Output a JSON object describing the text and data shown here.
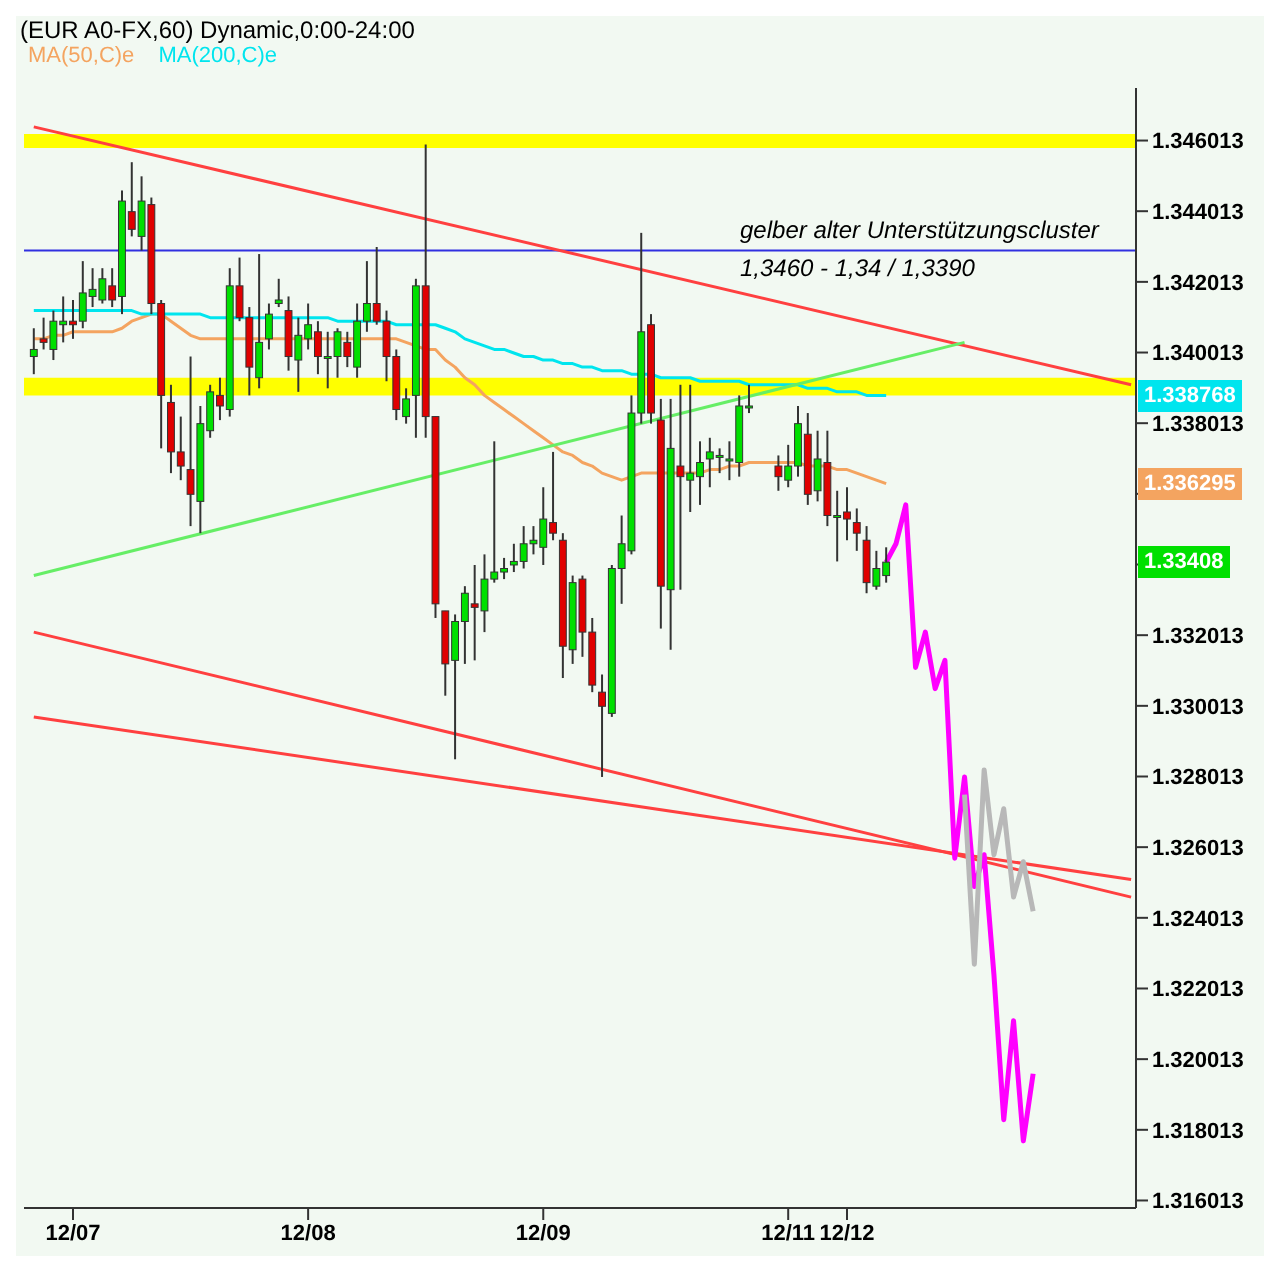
{
  "chart_data": {
    "type": "candlestick",
    "title": "(EUR A0-FX,60) Dynamic,0:00-24:00",
    "categories": [
      null,
      null,
      null,
      null,
      "12/07",
      null,
      null,
      null,
      null,
      null,
      null,
      null,
      null,
      null,
      null,
      null,
      null,
      null,
      null,
      null,
      null,
      null,
      null,
      null,
      null,
      null,
      null,
      null,
      "12/08",
      null,
      null,
      null,
      null,
      null,
      null,
      null,
      null,
      null,
      null,
      null,
      null,
      null,
      null,
      null,
      null,
      null,
      null,
      null,
      null,
      null,
      null,
      null,
      "12/09",
      null,
      null,
      null,
      null,
      null,
      null,
      null,
      null,
      null,
      null,
      null,
      null,
      null,
      null,
      null,
      null,
      null,
      null,
      null,
      null,
      null,
      null,
      null,
      null,
      "12/11",
      null,
      null,
      null,
      null,
      null,
      "12/12",
      null,
      null,
      null,
      null,
      null,
      null,
      null,
      null,
      null,
      null,
      null,
      null,
      null,
      null,
      null,
      null,
      null,
      null,
      null,
      null,
      null,
      null,
      null,
      null,
      null,
      null,
      null,
      null,
      null
    ],
    "ohlc": [
      [
        1.3399,
        1.3407,
        1.3394,
        1.3401
      ],
      [
        1.3404,
        1.341,
        1.3401,
        1.3403
      ],
      [
        1.3401,
        1.3412,
        1.3398,
        1.3409
      ],
      [
        1.3408,
        1.3416,
        1.3403,
        1.3409
      ],
      [
        1.3409,
        1.3415,
        1.3404,
        1.3408
      ],
      [
        1.3409,
        1.3426,
        1.3407,
        1.3417
      ],
      [
        1.3416,
        1.3424,
        1.3413,
        1.3418
      ],
      [
        1.3415,
        1.3424,
        1.3414,
        1.3421
      ],
      [
        1.3419,
        1.3424,
        1.3413,
        1.3415
      ],
      [
        1.3416,
        1.3446,
        1.3411,
        1.3443
      ],
      [
        1.344,
        1.3454,
        1.3433,
        1.3435
      ],
      [
        1.3433,
        1.345,
        1.3429,
        1.3443
      ],
      [
        1.3442,
        1.3444,
        1.3411,
        1.3414
      ],
      [
        1.3414,
        1.3415,
        1.3373,
        1.3388
      ],
      [
        1.3386,
        1.3391,
        1.3366,
        1.3372
      ],
      [
        1.3372,
        1.3382,
        1.3364,
        1.3368
      ],
      [
        1.3367,
        1.3399,
        1.3351,
        1.336
      ],
      [
        1.3358,
        1.3385,
        1.3349,
        1.338
      ],
      [
        1.3378,
        1.3391,
        1.3376,
        1.3389
      ],
      [
        1.3388,
        1.3393,
        1.3381,
        1.3385
      ],
      [
        1.3384,
        1.3424,
        1.3382,
        1.3419
      ],
      [
        1.3419,
        1.3427,
        1.3409,
        1.341
      ],
      [
        1.341,
        1.3413,
        1.3388,
        1.3396
      ],
      [
        1.3393,
        1.3428,
        1.339,
        1.3403
      ],
      [
        1.3404,
        1.3414,
        1.3401,
        1.3411
      ],
      [
        1.3414,
        1.3421,
        1.3413,
        1.3415
      ],
      [
        1.3412,
        1.3416,
        1.3395,
        1.3399
      ],
      [
        1.3398,
        1.341,
        1.3389,
        1.3405
      ],
      [
        1.3404,
        1.3414,
        1.3401,
        1.3408
      ],
      [
        1.3406,
        1.3409,
        1.3394,
        1.3399
      ],
      [
        1.3399,
        1.3406,
        1.339,
        1.3399
      ],
      [
        1.3399,
        1.3407,
        1.3393,
        1.3406
      ],
      [
        1.3403,
        1.3406,
        1.3396,
        1.3399
      ],
      [
        1.3396,
        1.3414,
        1.3393,
        1.3409
      ],
      [
        1.3409,
        1.3426,
        1.3406,
        1.3414
      ],
      [
        1.3414,
        1.343,
        1.3408,
        1.3409
      ],
      [
        1.3409,
        1.3412,
        1.3392,
        1.3399
      ],
      [
        1.3399,
        1.3401,
        1.3381,
        1.3384
      ],
      [
        1.3382,
        1.339,
        1.338,
        1.3387
      ],
      [
        1.3388,
        1.3421,
        1.3376,
        1.3419
      ],
      [
        1.3419,
        1.3459,
        1.3376,
        1.3382
      ],
      [
        1.3382,
        1.3382,
        1.3325,
        1.3329
      ],
      [
        1.3327,
        1.3327,
        1.3303,
        1.3312
      ],
      [
        1.3313,
        1.3326,
        1.3285,
        1.3324
      ],
      [
        1.3324,
        1.3334,
        1.3312,
        1.3332
      ],
      [
        1.3329,
        1.334,
        1.3313,
        1.3328
      ],
      [
        1.3327,
        1.3343,
        1.3321,
        1.3336
      ],
      [
        1.3336,
        1.3375,
        1.3335,
        1.3338
      ],
      [
        1.3338,
        1.3342,
        1.3336,
        1.3339
      ],
      [
        1.334,
        1.3346,
        1.3338,
        1.3341
      ],
      [
        1.3341,
        1.3351,
        1.3339,
        1.3346
      ],
      [
        1.3346,
        1.3351,
        1.3343,
        1.3347
      ],
      [
        1.3345,
        1.3362,
        1.334,
        1.3353
      ],
      [
        1.3352,
        1.3372,
        1.3347,
        1.3349
      ],
      [
        1.3347,
        1.3349,
        1.3308,
        1.3317
      ],
      [
        1.3316,
        1.3337,
        1.3312,
        1.3335
      ],
      [
        1.3336,
        1.3337,
        1.3314,
        1.3321
      ],
      [
        1.3321,
        1.3325,
        1.3304,
        1.3306
      ],
      [
        1.3304,
        1.3309,
        1.328,
        1.33
      ],
      [
        1.3298,
        1.334,
        1.3297,
        1.3339
      ],
      [
        1.3339,
        1.3354,
        1.3329,
        1.3346
      ],
      [
        1.3344,
        1.3388,
        1.3343,
        1.3383
      ],
      [
        1.3383,
        1.3434,
        1.338,
        1.3406
      ],
      [
        1.3408,
        1.3411,
        1.338,
        1.3383
      ],
      [
        1.3381,
        1.3387,
        1.3322,
        1.3334
      ],
      [
        1.3333,
        1.3387,
        1.3316,
        1.3373
      ],
      [
        1.3368,
        1.3391,
        1.3333,
        1.3365
      ],
      [
        1.3364,
        1.3391,
        1.3355,
        1.3366
      ],
      [
        1.3365,
        1.3375,
        1.3357,
        1.3369
      ],
      [
        1.337,
        1.3376,
        1.3362,
        1.3372
      ],
      [
        1.3371,
        1.3373,
        1.3366,
        1.3371
      ],
      [
        1.337,
        1.3375,
        1.3364,
        1.337
      ],
      [
        1.3369,
        1.3388,
        1.3365,
        1.3385
      ],
      [
        1.3385,
        1.3391,
        1.3383,
        1.3385
      ],
      null,
      null,
      [
        1.3368,
        1.3371,
        1.3361,
        1.3365
      ],
      [
        1.3364,
        1.3374,
        1.3362,
        1.3368
      ],
      [
        1.3368,
        1.3385,
        1.3365,
        1.338
      ],
      [
        1.3377,
        1.3383,
        1.3357,
        1.336
      ],
      [
        1.3361,
        1.3378,
        1.3358,
        1.337
      ],
      [
        1.3369,
        1.3378,
        1.3351,
        1.3354
      ],
      [
        1.3354,
        1.3361,
        1.3341,
        1.3354
      ],
      [
        1.3355,
        1.3362,
        1.3347,
        1.3353
      ],
      [
        1.3352,
        1.3356,
        1.3344,
        1.3349
      ],
      [
        1.3347,
        1.3351,
        1.3332,
        1.3335
      ],
      [
        1.3334,
        1.3344,
        1.3333,
        1.3339
      ],
      [
        1.3337,
        1.3345,
        1.3335,
        1.33408
      ],
      null,
      null,
      null,
      null,
      null,
      null,
      null,
      null,
      null,
      null,
      null,
      null,
      null,
      null,
      null,
      null,
      null,
      null,
      null,
      null,
      null,
      null,
      null,
      null,
      null
    ],
    "series": [
      {
        "type": "line",
        "name": "MA(50,C)e",
        "color": "#f4a460",
        "values": [
          1.3404,
          1.3404,
          1.3405,
          1.3405,
          1.3406,
          1.3406,
          1.3406,
          1.3406,
          1.3406,
          1.3407,
          1.3409,
          1.341,
          1.3411,
          1.3411,
          1.3409,
          1.3407,
          1.3405,
          1.3404,
          1.3404,
          1.3404,
          1.3404,
          1.3404,
          1.3404,
          1.3404,
          1.3404,
          1.3404,
          1.3404,
          1.3404,
          1.3404,
          1.3404,
          1.3404,
          1.3404,
          1.3404,
          1.3404,
          1.3404,
          1.3404,
          1.3404,
          1.3404,
          1.3403,
          1.3402,
          1.3401,
          1.3401,
          1.3398,
          1.3396,
          1.3393,
          1.3391,
          1.3388,
          1.3386,
          1.3384,
          1.3382,
          1.338,
          1.3378,
          1.3376,
          1.3374,
          1.3372,
          1.3371,
          1.3369,
          1.3368,
          1.3366,
          1.3365,
          1.3364,
          1.3365,
          1.3366,
          1.3366,
          1.3366,
          1.3366,
          1.3366,
          1.3366,
          1.3366,
          1.3367,
          1.3367,
          1.3368,
          1.3368,
          1.3369,
          1.3369,
          1.3369,
          1.3369,
          1.3369,
          1.3369,
          1.3368,
          1.3368,
          1.3368,
          1.3367,
          1.3367,
          1.3366,
          1.3365,
          1.3364,
          1.3363,
          null,
          null,
          null,
          null,
          null,
          null,
          null,
          null,
          null,
          null,
          null,
          null,
          null,
          null,
          null,
          null,
          null,
          null,
          null,
          null,
          null,
          null,
          null,
          null,
          null
        ]
      },
      {
        "type": "line",
        "name": "MA(200,C)e",
        "color": "#00e5ee",
        "values": [
          1.3412,
          1.3412,
          1.3412,
          1.3412,
          1.3412,
          1.3412,
          1.3412,
          1.3412,
          1.3412,
          1.3412,
          1.3412,
          1.3411,
          1.3411,
          1.3411,
          1.3411,
          1.3411,
          1.3411,
          1.3411,
          1.341,
          1.341,
          1.341,
          1.341,
          1.341,
          1.341,
          1.341,
          1.341,
          1.341,
          1.341,
          1.341,
          1.341,
          1.341,
          1.3409,
          1.3409,
          1.3409,
          1.3409,
          1.3409,
          1.3409,
          1.3408,
          1.3408,
          1.3408,
          1.3408,
          1.3408,
          1.3407,
          1.3406,
          1.3404,
          1.3403,
          1.3402,
          1.3401,
          1.3401,
          1.34,
          1.3399,
          1.3399,
          1.3398,
          1.3398,
          1.3397,
          1.3397,
          1.3396,
          1.3396,
          1.3395,
          1.3395,
          1.3395,
          1.3394,
          1.3394,
          1.3394,
          1.3393,
          1.3393,
          1.3393,
          1.3393,
          1.3392,
          1.3392,
          1.3392,
          1.3392,
          1.3392,
          1.3391,
          1.3391,
          1.3391,
          1.3391,
          1.3391,
          1.3391,
          1.339,
          1.339,
          1.339,
          1.3389,
          1.3389,
          1.3389,
          1.3388,
          1.3388,
          1.3388,
          null,
          null,
          null,
          null,
          null,
          null,
          null,
          null,
          null,
          null,
          null,
          null,
          null,
          null,
          null,
          null,
          null,
          null,
          null,
          null,
          null,
          null,
          null,
          null,
          null
        ]
      },
      {
        "type": "line",
        "color": "#ff4040",
        "values": [
          1.3464,
          null,
          null,
          null,
          null,
          null,
          null,
          null,
          null,
          null,
          null,
          null,
          null,
          null,
          null,
          null,
          null,
          null,
          null,
          null,
          null,
          null,
          null,
          null,
          null,
          null,
          null,
          null,
          null,
          null,
          null,
          null,
          null,
          null,
          null,
          null,
          null,
          null,
          null,
          null,
          null,
          null,
          null,
          null,
          null,
          null,
          null,
          null,
          null,
          null,
          null,
          null,
          null,
          null,
          null,
          null,
          null,
          null,
          null,
          null,
          null,
          null,
          null,
          null,
          null,
          null,
          null,
          null,
          null,
          null,
          null,
          null,
          null,
          null,
          null,
          null,
          null,
          null,
          null,
          null,
          null,
          null,
          null,
          null,
          null,
          null,
          null,
          null,
          null,
          null,
          null,
          null,
          null,
          null,
          null,
          null,
          null,
          null,
          null,
          null,
          null,
          null,
          null,
          null,
          null,
          null,
          null,
          null,
          null,
          null,
          null,
          null,
          1.3391
        ]
      },
      {
        "type": "line",
        "color": "#ff4040",
        "values": [
          1.3321,
          null,
          null,
          null,
          null,
          null,
          null,
          null,
          null,
          null,
          null,
          null,
          null,
          null,
          null,
          null,
          null,
          null,
          null,
          null,
          null,
          null,
          null,
          null,
          null,
          null,
          null,
          null,
          null,
          null,
          null,
          null,
          null,
          null,
          null,
          null,
          null,
          null,
          null,
          null,
          null,
          null,
          null,
          null,
          null,
          null,
          null,
          null,
          null,
          null,
          null,
          null,
          null,
          null,
          null,
          null,
          null,
          null,
          null,
          null,
          null,
          null,
          null,
          null,
          null,
          null,
          null,
          null,
          null,
          null,
          null,
          null,
          null,
          null,
          null,
          null,
          null,
          null,
          null,
          null,
          null,
          null,
          null,
          null,
          null,
          null,
          null,
          null,
          null,
          null,
          null,
          null,
          null,
          null,
          null,
          null,
          null,
          null,
          null,
          null,
          null,
          null,
          null,
          null,
          null,
          null,
          null,
          null,
          null,
          null,
          null,
          null,
          1.3246
        ]
      },
      {
        "type": "line",
        "color": "#ff4040",
        "values": [
          1.3297,
          null,
          null,
          null,
          null,
          null,
          null,
          null,
          null,
          null,
          null,
          null,
          null,
          null,
          null,
          null,
          null,
          null,
          null,
          null,
          null,
          null,
          null,
          null,
          null,
          null,
          null,
          null,
          null,
          null,
          null,
          null,
          null,
          null,
          null,
          null,
          null,
          null,
          null,
          null,
          null,
          null,
          null,
          null,
          null,
          null,
          null,
          null,
          null,
          null,
          null,
          null,
          null,
          null,
          null,
          null,
          null,
          null,
          null,
          null,
          null,
          null,
          null,
          null,
          null,
          null,
          null,
          null,
          null,
          null,
          null,
          null,
          null,
          null,
          null,
          null,
          null,
          null,
          null,
          null,
          null,
          null,
          null,
          null,
          null,
          null,
          null,
          null,
          null,
          null,
          null,
          null,
          null,
          null,
          null,
          null,
          null,
          null,
          null,
          null,
          null,
          null,
          null,
          null,
          null,
          null,
          null,
          null,
          null,
          null,
          null,
          null,
          1.3251
        ]
      },
      {
        "type": "line",
        "color": "#66ee66",
        "values": [
          1.3337,
          null,
          null,
          null,
          null,
          null,
          null,
          null,
          null,
          null,
          null,
          null,
          null,
          null,
          null,
          null,
          null,
          null,
          null,
          null,
          null,
          null,
          null,
          null,
          null,
          null,
          null,
          null,
          null,
          null,
          null,
          null,
          null,
          null,
          null,
          null,
          null,
          null,
          null,
          null,
          null,
          null,
          null,
          null,
          null,
          null,
          null,
          null,
          null,
          null,
          null,
          null,
          null,
          null,
          null,
          null,
          null,
          null,
          null,
          null,
          null,
          null,
          null,
          null,
          null,
          null,
          null,
          null,
          null,
          null,
          null,
          null,
          null,
          null,
          null,
          null,
          null,
          null,
          null,
          null,
          null,
          null,
          null,
          null,
          null,
          null,
          null,
          null,
          null,
          null,
          null,
          null,
          null,
          null,
          null,
          1.3403,
          null,
          null,
          null,
          null,
          null,
          null,
          null,
          null,
          null,
          null,
          null,
          null,
          null,
          null,
          null,
          null,
          null
        ]
      },
      {
        "type": "line",
        "color": "#ff00ff",
        "values": [
          null,
          null,
          null,
          null,
          null,
          null,
          null,
          null,
          null,
          null,
          null,
          null,
          null,
          null,
          null,
          null,
          null,
          null,
          null,
          null,
          null,
          null,
          null,
          null,
          null,
          null,
          null,
          null,
          null,
          null,
          null,
          null,
          null,
          null,
          null,
          null,
          null,
          null,
          null,
          null,
          null,
          null,
          null,
          null,
          null,
          null,
          null,
          null,
          null,
          null,
          null,
          null,
          null,
          null,
          null,
          null,
          null,
          null,
          null,
          null,
          null,
          null,
          null,
          null,
          null,
          null,
          null,
          null,
          null,
          null,
          null,
          null,
          null,
          null,
          null,
          null,
          null,
          null,
          null,
          null,
          null,
          null,
          null,
          null,
          null,
          null,
          null,
          1.33408,
          1.3346,
          1.3357,
          1.3311,
          1.3321,
          1.3305,
          1.3313,
          1.3257,
          1.328,
          1.3249,
          1.3258,
          1.3224,
          1.3183,
          1.3211,
          1.3177,
          1.3196,
          null,
          null,
          null,
          null,
          null,
          null,
          null,
          null,
          null,
          null
        ]
      },
      {
        "type": "line",
        "color": "#b8b8b8",
        "values": [
          null,
          null,
          null,
          null,
          null,
          null,
          null,
          null,
          null,
          null,
          null,
          null,
          null,
          null,
          null,
          null,
          null,
          null,
          null,
          null,
          null,
          null,
          null,
          null,
          null,
          null,
          null,
          null,
          null,
          null,
          null,
          null,
          null,
          null,
          null,
          null,
          null,
          null,
          null,
          null,
          null,
          null,
          null,
          null,
          null,
          null,
          null,
          null,
          null,
          null,
          null,
          null,
          null,
          null,
          null,
          null,
          null,
          null,
          null,
          null,
          null,
          null,
          null,
          null,
          null,
          null,
          null,
          null,
          null,
          null,
          null,
          null,
          null,
          null,
          null,
          null,
          null,
          null,
          null,
          null,
          null,
          null,
          null,
          null,
          null,
          null,
          null,
          null,
          null,
          null,
          null,
          null,
          null,
          null,
          null,
          1.3275,
          1.3227,
          1.3282,
          1.3258,
          1.3271,
          1.3246,
          1.3256,
          1.3242,
          null,
          null,
          null,
          null,
          null,
          null,
          null,
          null,
          null,
          null
        ]
      }
    ],
    "bands": [
      {
        "axis": "y",
        "from": 1.3458,
        "to": 1.3462,
        "color": "#ffff00"
      },
      {
        "axis": "y",
        "from": 1.3388,
        "to": 1.3393,
        "color": "#ffff00"
      }
    ],
    "ref_lines": [
      {
        "axis": "y",
        "value": 1.3429,
        "color": "#3030e0"
      }
    ],
    "annotations": [
      "gelber alter Unterstützungscluster",
      "1,3460 - 1,34 / 1,3390",
      "1.338768",
      "1.336295",
      "1.33408"
    ],
    "ylim": [
      1.3158,
      1.3475
    ],
    "yticks": [
      1.316013,
      1.318013,
      1.320013,
      1.322013,
      1.324013,
      1.326013,
      1.328013,
      1.330013,
      1.332013,
      {
        "value": 1.334013,
        "label": null
      },
      {
        "value": 1.336013,
        "label": null
      },
      1.338013,
      1.340013,
      1.342013,
      1.344013,
      1.346013
    ],
    "legend": "top left",
    "grid": false
  }
}
